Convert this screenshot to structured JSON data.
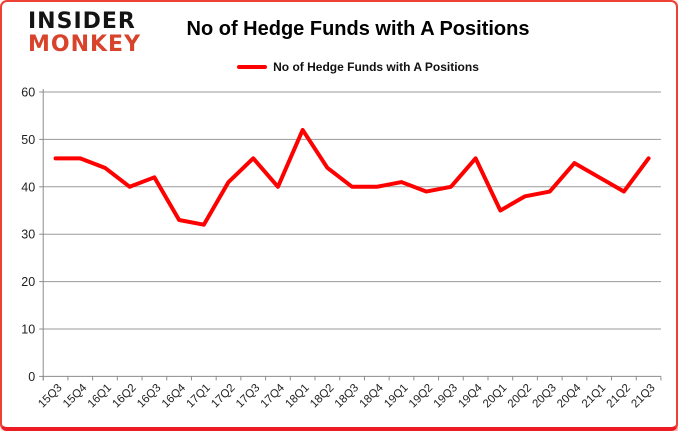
{
  "logo": {
    "line1": "INSIDER",
    "line2": "MONKEY"
  },
  "header": {
    "title": "No of Hedge Funds with A Positions"
  },
  "legend": {
    "label": "No of Hedge Funds with A Positions"
  },
  "colors": {
    "series": "#ff0000",
    "grid": "#9a9a9a",
    "axis": "#8c8c8c",
    "tick_label": "#1f1f1f",
    "border": "#ee4136",
    "logo_primary": "#141414",
    "logo_accent": "#d8432c"
  },
  "chart_data": {
    "type": "line",
    "title": "No of Hedge Funds with A Positions",
    "categories": [
      "15Q3",
      "15Q4",
      "16Q1",
      "16Q2",
      "16Q3",
      "16Q4",
      "17Q1",
      "17Q2",
      "17Q3",
      "17Q4",
      "18Q1",
      "18Q2",
      "18Q3",
      "18Q4",
      "19Q1",
      "19Q2",
      "19Q3",
      "19Q4",
      "20Q1",
      "20Q2",
      "20Q3",
      "20Q4",
      "21Q1",
      "21Q2",
      "21Q3"
    ],
    "series": [
      {
        "name": "No of Hedge Funds with A Positions",
        "color": "#ff0000",
        "values": [
          46,
          46,
          44,
          40,
          42,
          33,
          32,
          41,
          46,
          40,
          52,
          44,
          40,
          40,
          41,
          39,
          40,
          46,
          35,
          38,
          39,
          45,
          42,
          39,
          46
        ]
      }
    ],
    "xlabel": "",
    "ylabel": "",
    "ylim": [
      0,
      60
    ],
    "yticks": [
      0,
      10,
      20,
      30,
      40,
      50,
      60
    ],
    "grid": true,
    "legend_position": "top"
  }
}
